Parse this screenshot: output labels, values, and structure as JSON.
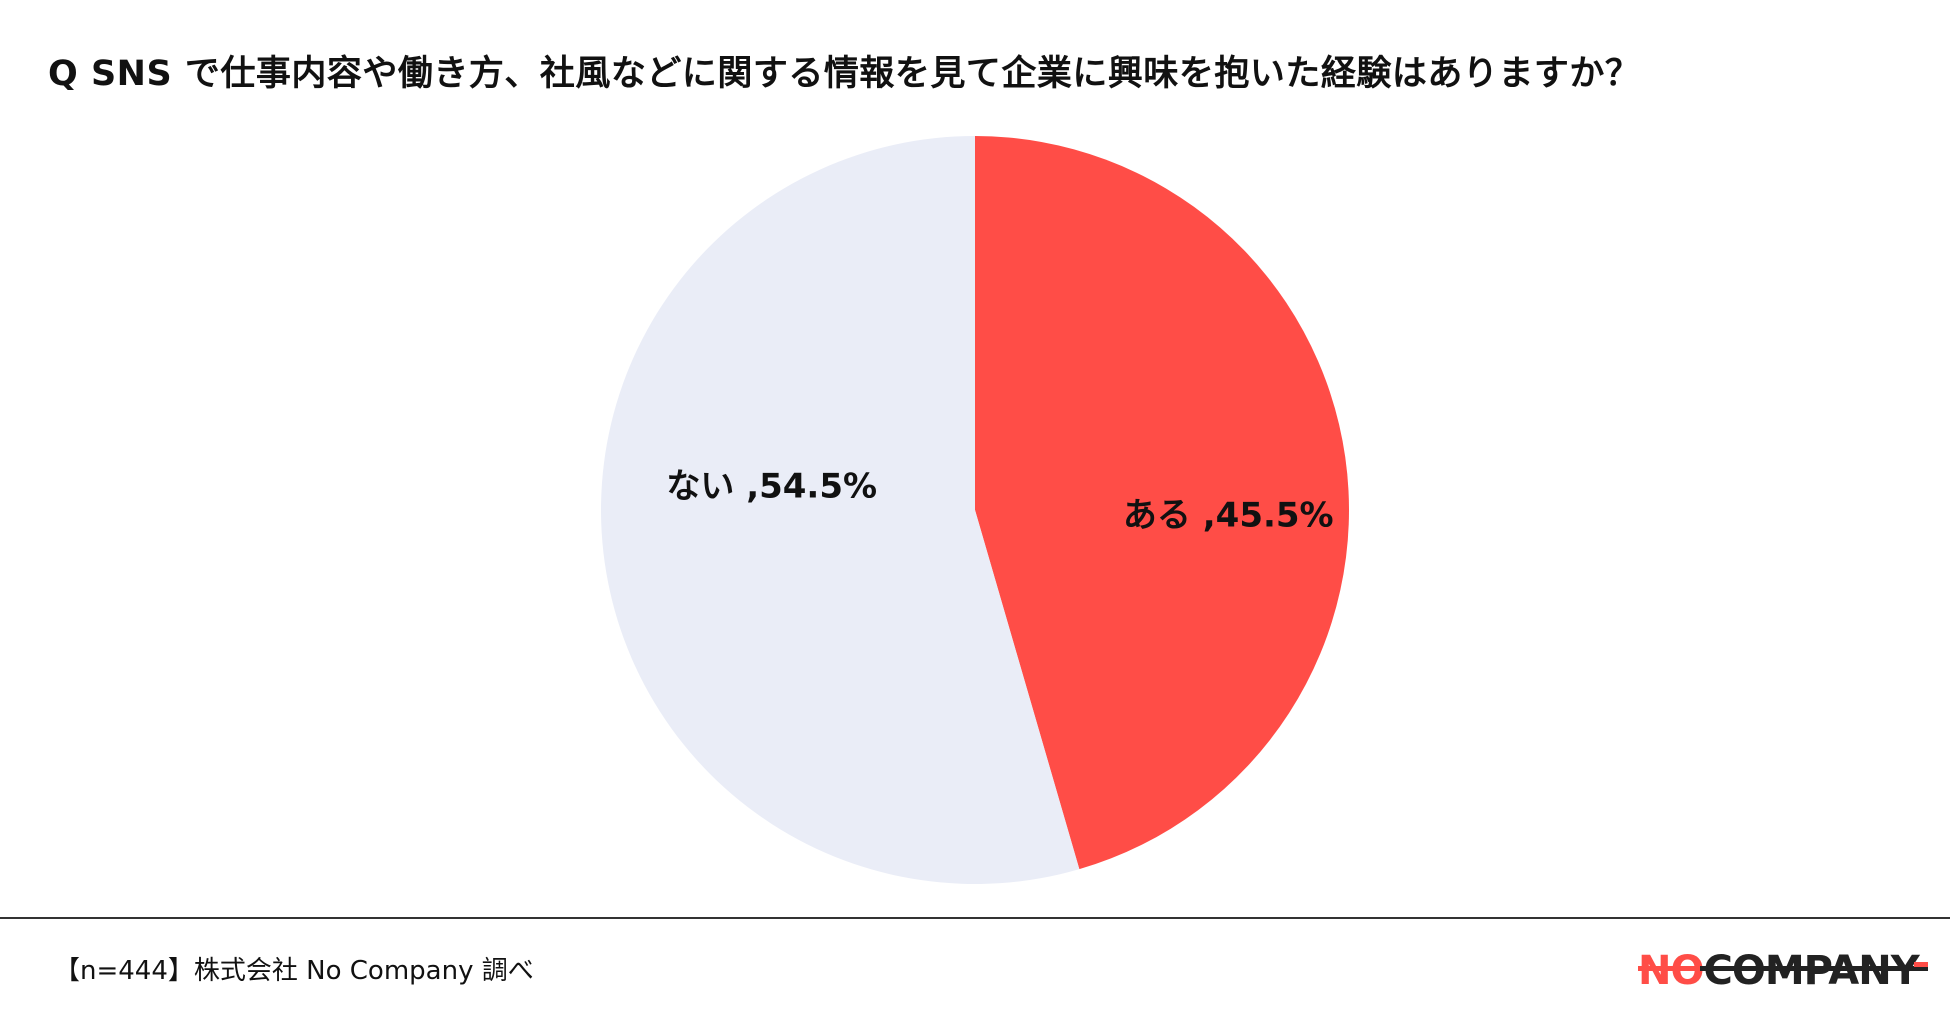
{
  "title": "Q SNS で仕事内容や働き方、社風などに関する情報を見て企業に興味を抱いた経験はありますか？",
  "chart_data": {
    "type": "pie",
    "slices": [
      {
        "label": "ある",
        "value": 45.5,
        "display": "ある ,45.5%",
        "color": "#ff4d47"
      },
      {
        "label": "ない",
        "value": 54.5,
        "display": "ない ,54.5%",
        "color": "#eaedf7"
      }
    ],
    "start_angle": "12 o'clock",
    "direction": "clockwise"
  },
  "footer": {
    "note": "【n=444】株式会社 No Company 調べ"
  },
  "logo": {
    "text": "NO-COMPANY-",
    "accent_color": "#ff4d47",
    "dark_color": "#222222"
  }
}
